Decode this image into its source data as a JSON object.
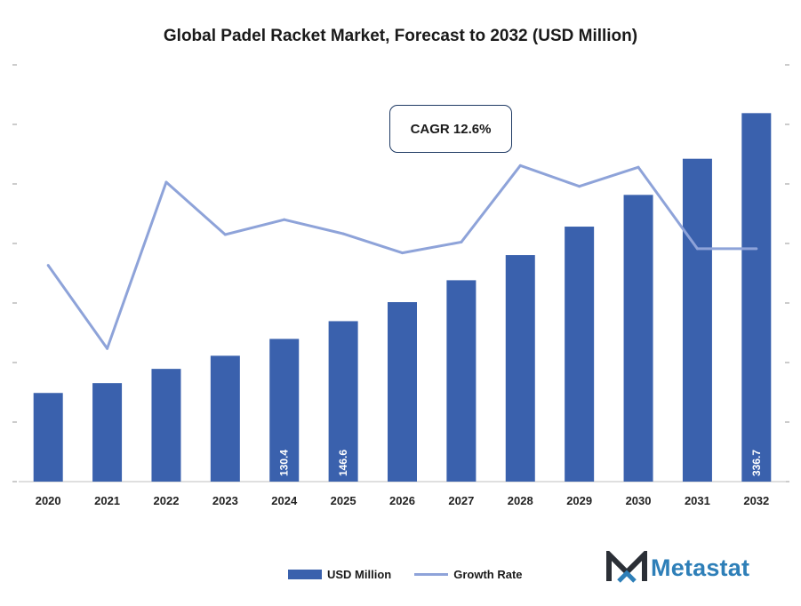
{
  "chart_data": {
    "type": "bar",
    "title": "Global Padel Racket Market, Forecast to 2032 (USD Million)",
    "categories": [
      "2020",
      "2021",
      "2022",
      "2023",
      "2024",
      "2025",
      "2026",
      "2027",
      "2028",
      "2029",
      "2030",
      "2031",
      "2032"
    ],
    "series": [
      {
        "name": "USD Million",
        "type": "bar",
        "color": "#3a61ad",
        "values": [
          81.0,
          90.0,
          103.0,
          115.0,
          130.4,
          146.6,
          164.0,
          184.0,
          207.0,
          233.0,
          262.0,
          295.0,
          336.7
        ]
      },
      {
        "name": "Growth Rate",
        "type": "line",
        "color": "#8ea3d9",
        "values": [
          0.46,
          0.36,
          0.56,
          0.497,
          0.515,
          0.498,
          0.475,
          0.488,
          0.58,
          0.555,
          0.578,
          0.48,
          0.48
        ]
      }
    ],
    "data_labels": {
      "2024": "130.4",
      "2025": "146.6",
      "2032": "336.7"
    },
    "annotation": "CAGR 12.6%",
    "legend_position": "bottom",
    "grid": false
  },
  "brand": {
    "name": "Metastat",
    "color": "#2e7fb8"
  }
}
